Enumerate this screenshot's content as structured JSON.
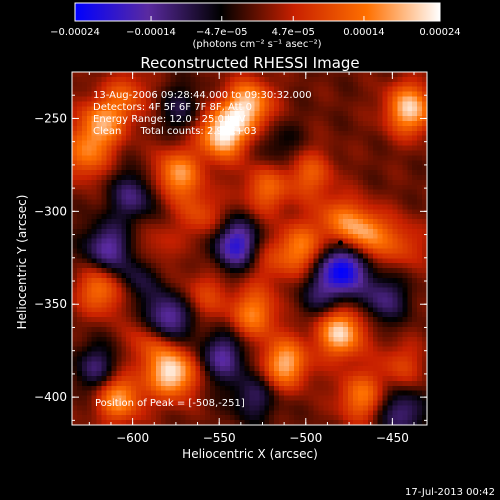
{
  "chart_data": {
    "type": "heatmap",
    "title": "Reconstructed RHESSI Image",
    "xlabel": "Heliocentric X (arcsec)",
    "ylabel": "Heliocentric Y (arcsec)",
    "xlim": [
      -635,
      -430
    ],
    "ylim": [
      -415,
      -225
    ],
    "x_ticks": [
      -600,
      -550,
      -500,
      -450
    ],
    "x_tick_labels": [
      "−600",
      "−550",
      "−500",
      "−450"
    ],
    "y_ticks": [
      -250,
      -300,
      -350,
      -400
    ],
    "y_tick_labels": [
      "−250",
      "−300",
      "−350",
      "−400"
    ],
    "colorbar": {
      "min": -0.00024,
      "max": 0.00024,
      "tick_values": [
        -0.00024,
        -0.00014,
        -4.7e-05,
        4.7e-05,
        0.00014,
        0.00024
      ],
      "tick_labels": [
        "−0.00024",
        "−0.00014",
        "−4.7e−05",
        "4.7e−05",
        "0.00014",
        "0.00024"
      ],
      "unit_label": "(photons cm⁻² s⁻¹ asec⁻²)",
      "colormap": [
        "#0000ff",
        "#5a2aa0",
        "#000000",
        "#c82000",
        "#ff7000",
        "#ffffff"
      ]
    },
    "annotations": [
      "13-Aug-2006 09:28:44.000 to 09:30:32.000",
      "Detectors: 4F 5F 6F 7F 8F, Att 0",
      "Energy Range: 12.0 - 25.0 keV",
      "Clean      Total counts: 2.99E+03"
    ],
    "peak_label": "Position of Peak = [-508,-251]",
    "peak_position": [
      -508,
      -251
    ],
    "blobs": [
      {
        "x": -548,
        "y": -258,
        "v": 0.00024
      },
      {
        "x": -533,
        "y": -243,
        "v": 0.0002
      },
      {
        "x": -440,
        "y": -245,
        "v": 0.00021
      },
      {
        "x": -603,
        "y": -238,
        "v": 0.0001
      },
      {
        "x": -618,
        "y": -253,
        "v": 0.00016
      },
      {
        "x": -628,
        "y": -270,
        "v": 0.00013
      },
      {
        "x": -574,
        "y": -280,
        "v": 0.00017
      },
      {
        "x": -560,
        "y": -302,
        "v": 9e-05
      },
      {
        "x": -523,
        "y": -288,
        "v": 0.00012
      },
      {
        "x": -498,
        "y": -280,
        "v": 0.00011
      },
      {
        "x": -503,
        "y": -320,
        "v": 0.00014
      },
      {
        "x": -481,
        "y": -305,
        "v": 0.00012
      },
      {
        "x": -465,
        "y": -313,
        "v": 0.00017
      },
      {
        "x": -443,
        "y": -318,
        "v": 8e-05
      },
      {
        "x": -618,
        "y": -342,
        "v": 0.00015
      },
      {
        "x": -588,
        "y": -320,
        "v": 6e-05
      },
      {
        "x": -530,
        "y": -355,
        "v": 0.00015
      },
      {
        "x": -522,
        "y": -327,
        "v": 7e-05
      },
      {
        "x": -558,
        "y": -345,
        "v": 8e-05
      },
      {
        "x": -577,
        "y": -387,
        "v": 0.00023
      },
      {
        "x": -590,
        "y": -370,
        "v": 0.0001
      },
      {
        "x": -608,
        "y": -400,
        "v": 0.00018
      },
      {
        "x": -512,
        "y": -382,
        "v": 0.00019
      },
      {
        "x": -480,
        "y": -365,
        "v": 0.00022
      },
      {
        "x": -468,
        "y": -400,
        "v": 0.00014
      },
      {
        "x": -445,
        "y": -383,
        "v": 8e-05
      },
      {
        "x": -600,
        "y": -292,
        "v": -0.00012
      },
      {
        "x": -615,
        "y": -320,
        "v": -0.00015
      },
      {
        "x": -580,
        "y": -358,
        "v": -0.00018
      },
      {
        "x": -598,
        "y": -335,
        "v": -9e-05
      },
      {
        "x": -540,
        "y": -318,
        "v": -0.0002
      },
      {
        "x": -548,
        "y": -378,
        "v": -0.00014
      },
      {
        "x": -478,
        "y": -330,
        "v": -0.00024
      },
      {
        "x": -490,
        "y": -345,
        "v": -0.0001
      },
      {
        "x": -455,
        "y": -347,
        "v": -0.00012
      },
      {
        "x": -530,
        "y": -400,
        "v": -0.0001
      },
      {
        "x": -445,
        "y": -408,
        "v": -0.00013
      },
      {
        "x": -572,
        "y": -245,
        "v": -8e-05
      },
      {
        "x": -515,
        "y": -265,
        "v": -6e-05
      },
      {
        "x": -620,
        "y": -385,
        "v": -0.00012
      }
    ]
  },
  "footer": {
    "timestamp": "17-Jul-2013 00:42"
  }
}
